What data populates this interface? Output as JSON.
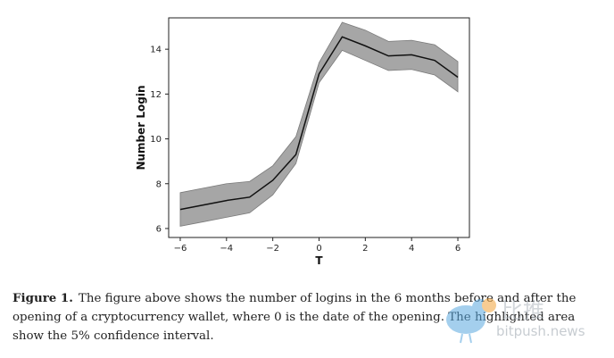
{
  "chart_data": {
    "type": "line",
    "title": "",
    "xlabel": "T",
    "ylabel": "Number Login",
    "xlim": [
      -6.5,
      6.5
    ],
    "ylim": [
      5.6,
      15.4
    ],
    "xticks": [
      -6,
      -4,
      -2,
      0,
      2,
      4,
      6
    ],
    "yticks": [
      6,
      8,
      10,
      12,
      14
    ],
    "xtick_labels": [
      "−6",
      "−4",
      "−2",
      "0",
      "2",
      "4",
      "6"
    ],
    "ytick_labels": [
      "6",
      "8",
      "10",
      "12",
      "14"
    ],
    "grid": false,
    "legend": "none",
    "series": [
      {
        "x": [
          -6,
          -5,
          -4,
          -3,
          -2,
          -1,
          0,
          1,
          2,
          3,
          4,
          5,
          6
        ],
        "values": [
          6.85,
          7.05,
          7.25,
          7.4,
          8.15,
          9.3,
          12.9,
          14.55,
          14.15,
          13.7,
          13.75,
          13.5,
          12.75
        ],
        "lower": [
          6.1,
          6.3,
          6.5,
          6.7,
          7.5,
          8.9,
          12.5,
          13.95,
          13.5,
          13.05,
          13.1,
          12.85,
          12.1
        ],
        "upper": [
          7.6,
          7.8,
          8.0,
          8.1,
          8.8,
          10.1,
          13.4,
          15.2,
          14.85,
          14.35,
          14.4,
          14.2,
          13.45
        ]
      }
    ],
    "colors": {
      "line": "#111111",
      "band": "#a6a6a6",
      "band_edge": "#7a7a7a"
    }
  },
  "caption": {
    "label": "Figure 1.",
    "text": "The figure above shows the number of logins in the 6 months before and after the opening of a cryptocurrency wallet, where 0 is the date of the opening. The highlighted area show the 5% confidence interval."
  },
  "watermark": {
    "text": "bitpush.news",
    "chars": "比推"
  }
}
